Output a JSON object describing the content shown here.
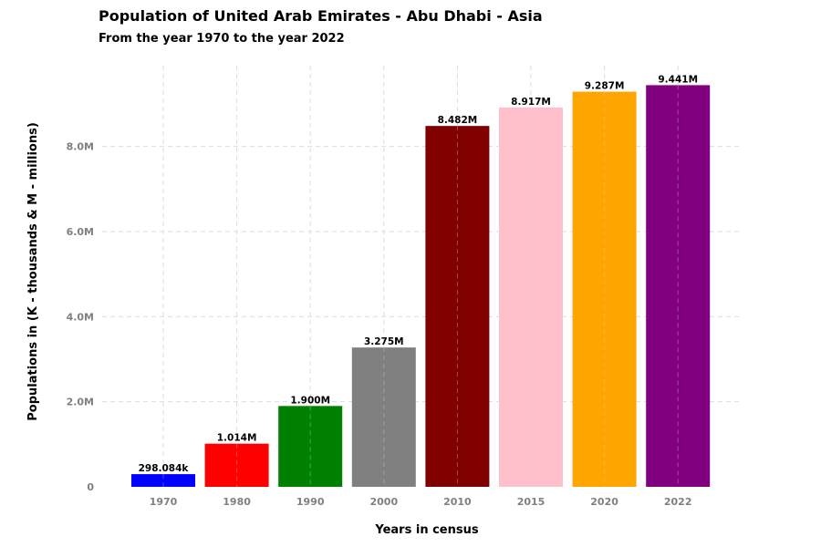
{
  "chart_data": {
    "type": "bar",
    "title": "Population of United Arab Emirates - Abu Dhabi - Asia",
    "subtitle": "From the year 1970 to the year 2022",
    "xlabel": "Years in census",
    "ylabel": "Populations in (K - thousands & M - millions)",
    "categories": [
      "1970",
      "1980",
      "1990",
      "2000",
      "2010",
      "2015",
      "2020",
      "2022"
    ],
    "values": [
      298084,
      1014000,
      1900000,
      3275000,
      8482000,
      8917000,
      9287000,
      9441000
    ],
    "data_labels": [
      "298.084k",
      "1.014M",
      "1.900M",
      "3.275M",
      "8.482M",
      "8.917M",
      "9.287M",
      "9.441M"
    ],
    "colors": [
      "#0000ff",
      "#ff0000",
      "#008000",
      "#808080",
      "#800000",
      "#ffc0cb",
      "#ffa500",
      "#800080"
    ],
    "ylim": [
      0,
      9900000
    ],
    "yticks": [
      0,
      2000000,
      4000000,
      6000000,
      8000000
    ],
    "ytick_labels": [
      "0",
      "2.0M",
      "4.0M",
      "6.0M",
      "8.0M"
    ],
    "grid": true,
    "legend": "none"
  }
}
